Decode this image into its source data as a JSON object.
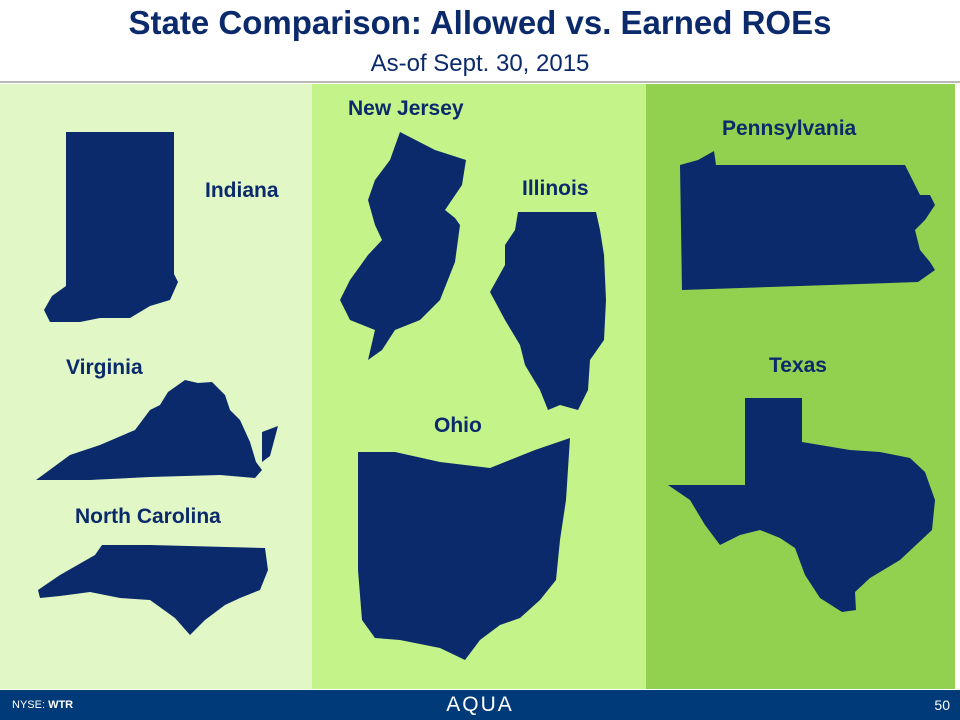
{
  "title": "State Comparison: Allowed vs. Earned ROEs",
  "subtitle": "As-of Sept. 30, 2015",
  "states": {
    "indiana": "Indiana",
    "virginia": "Virginia",
    "north_carolina": "North Carolina",
    "new_jersey": "New Jersey",
    "illinois": "Illinois",
    "ohio": "Ohio",
    "pennsylvania": "Pennsylvania",
    "texas": "Texas"
  },
  "colors": {
    "map": "#0b2a6b",
    "panel1": "#e1f7c6",
    "panel2": "#c4f38a",
    "panel3": "#92d050",
    "footer": "#003a78"
  },
  "footer": {
    "ticker_prefix": "NYSE:",
    "ticker": "WTR",
    "logo": "AQUA",
    "page_number": "50"
  }
}
